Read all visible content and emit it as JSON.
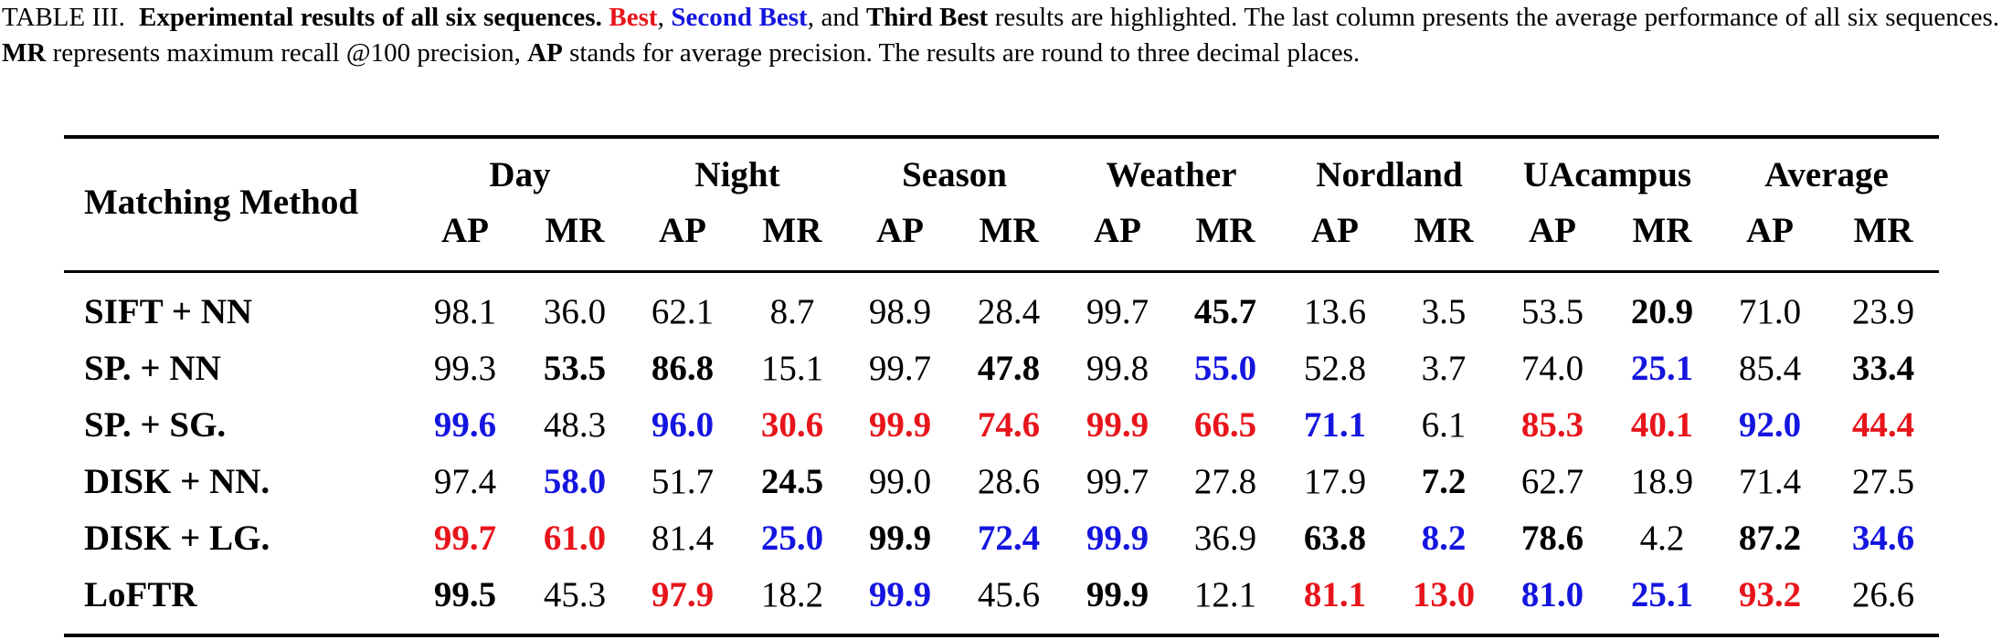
{
  "caption": {
    "prefix": "TABLE III.",
    "bold_title": "Experimental results of all six sequences.",
    "best": "Best",
    "comma1": ",",
    "second": "Second Best",
    "and_text": ", and",
    "third": "Third Best",
    "rest1": "results are highlighted. The last column presents the average performance of all six sequences.",
    "mr": "MR",
    "rest2": "represents maximum recall @100 precision,",
    "ap": "AP",
    "rest3": "stands for average precision. The results are round to three decimal places."
  },
  "table": {
    "method_header": "Matching Method",
    "sequences": [
      "Day",
      "Night",
      "Season",
      "Weather",
      "Nordland",
      "UAcampus",
      "Average"
    ],
    "metrics": [
      "AP",
      "MR"
    ],
    "rows": [
      {
        "method": "SIFT + NN",
        "cells": [
          {
            "v": "98.1",
            "s": ""
          },
          {
            "v": "36.0",
            "s": ""
          },
          {
            "v": "62.1",
            "s": ""
          },
          {
            "v": "8.7",
            "s": ""
          },
          {
            "v": "98.9",
            "s": ""
          },
          {
            "v": "28.4",
            "s": ""
          },
          {
            "v": "99.7",
            "s": ""
          },
          {
            "v": "45.7",
            "s": "third"
          },
          {
            "v": "13.6",
            "s": ""
          },
          {
            "v": "3.5",
            "s": ""
          },
          {
            "v": "53.5",
            "s": ""
          },
          {
            "v": "20.9",
            "s": "third"
          },
          {
            "v": "71.0",
            "s": ""
          },
          {
            "v": "23.9",
            "s": ""
          }
        ]
      },
      {
        "method": "SP. + NN",
        "cells": [
          {
            "v": "99.3",
            "s": ""
          },
          {
            "v": "53.5",
            "s": "third"
          },
          {
            "v": "86.8",
            "s": "third"
          },
          {
            "v": "15.1",
            "s": ""
          },
          {
            "v": "99.7",
            "s": ""
          },
          {
            "v": "47.8",
            "s": "third"
          },
          {
            "v": "99.8",
            "s": ""
          },
          {
            "v": "55.0",
            "s": "second"
          },
          {
            "v": "52.8",
            "s": ""
          },
          {
            "v": "3.7",
            "s": ""
          },
          {
            "v": "74.0",
            "s": ""
          },
          {
            "v": "25.1",
            "s": "second"
          },
          {
            "v": "85.4",
            "s": ""
          },
          {
            "v": "33.4",
            "s": "third"
          }
        ]
      },
      {
        "method": "SP. + SG.",
        "cells": [
          {
            "v": "99.6",
            "s": "second"
          },
          {
            "v": "48.3",
            "s": ""
          },
          {
            "v": "96.0",
            "s": "second"
          },
          {
            "v": "30.6",
            "s": "best"
          },
          {
            "v": "99.9",
            "s": "best"
          },
          {
            "v": "74.6",
            "s": "best"
          },
          {
            "v": "99.9",
            "s": "best"
          },
          {
            "v": "66.5",
            "s": "best"
          },
          {
            "v": "71.1",
            "s": "second"
          },
          {
            "v": "6.1",
            "s": ""
          },
          {
            "v": "85.3",
            "s": "best"
          },
          {
            "v": "40.1",
            "s": "best"
          },
          {
            "v": "92.0",
            "s": "second"
          },
          {
            "v": "44.4",
            "s": "best"
          }
        ]
      },
      {
        "method": "DISK + NN.",
        "cells": [
          {
            "v": "97.4",
            "s": ""
          },
          {
            "v": "58.0",
            "s": "second"
          },
          {
            "v": "51.7",
            "s": ""
          },
          {
            "v": "24.5",
            "s": "third"
          },
          {
            "v": "99.0",
            "s": ""
          },
          {
            "v": "28.6",
            "s": ""
          },
          {
            "v": "99.7",
            "s": ""
          },
          {
            "v": "27.8",
            "s": ""
          },
          {
            "v": "17.9",
            "s": ""
          },
          {
            "v": "7.2",
            "s": "third"
          },
          {
            "v": "62.7",
            "s": ""
          },
          {
            "v": "18.9",
            "s": ""
          },
          {
            "v": "71.4",
            "s": ""
          },
          {
            "v": "27.5",
            "s": ""
          }
        ]
      },
      {
        "method": "DISK + LG.",
        "cells": [
          {
            "v": "99.7",
            "s": "best"
          },
          {
            "v": "61.0",
            "s": "best"
          },
          {
            "v": "81.4",
            "s": ""
          },
          {
            "v": "25.0",
            "s": "second"
          },
          {
            "v": "99.9",
            "s": "third"
          },
          {
            "v": "72.4",
            "s": "second"
          },
          {
            "v": "99.9",
            "s": "second"
          },
          {
            "v": "36.9",
            "s": ""
          },
          {
            "v": "63.8",
            "s": "third"
          },
          {
            "v": "8.2",
            "s": "second"
          },
          {
            "v": "78.6",
            "s": "third"
          },
          {
            "v": "4.2",
            "s": ""
          },
          {
            "v": "87.2",
            "s": "third"
          },
          {
            "v": "34.6",
            "s": "second"
          }
        ]
      },
      {
        "method": "LoFTR",
        "cells": [
          {
            "v": "99.5",
            "s": "third"
          },
          {
            "v": "45.3",
            "s": ""
          },
          {
            "v": "97.9",
            "s": "best"
          },
          {
            "v": "18.2",
            "s": ""
          },
          {
            "v": "99.9",
            "s": "second"
          },
          {
            "v": "45.6",
            "s": ""
          },
          {
            "v": "99.9",
            "s": "third"
          },
          {
            "v": "12.1",
            "s": ""
          },
          {
            "v": "81.1",
            "s": "best"
          },
          {
            "v": "13.0",
            "s": "best"
          },
          {
            "v": "81.0",
            "s": "second"
          },
          {
            "v": "25.1",
            "s": "second"
          },
          {
            "v": "93.2",
            "s": "best"
          },
          {
            "v": "26.6",
            "s": ""
          }
        ]
      }
    ]
  },
  "colors": {
    "best": "#e8141b",
    "second": "#1515e0",
    "text": "#000000"
  }
}
